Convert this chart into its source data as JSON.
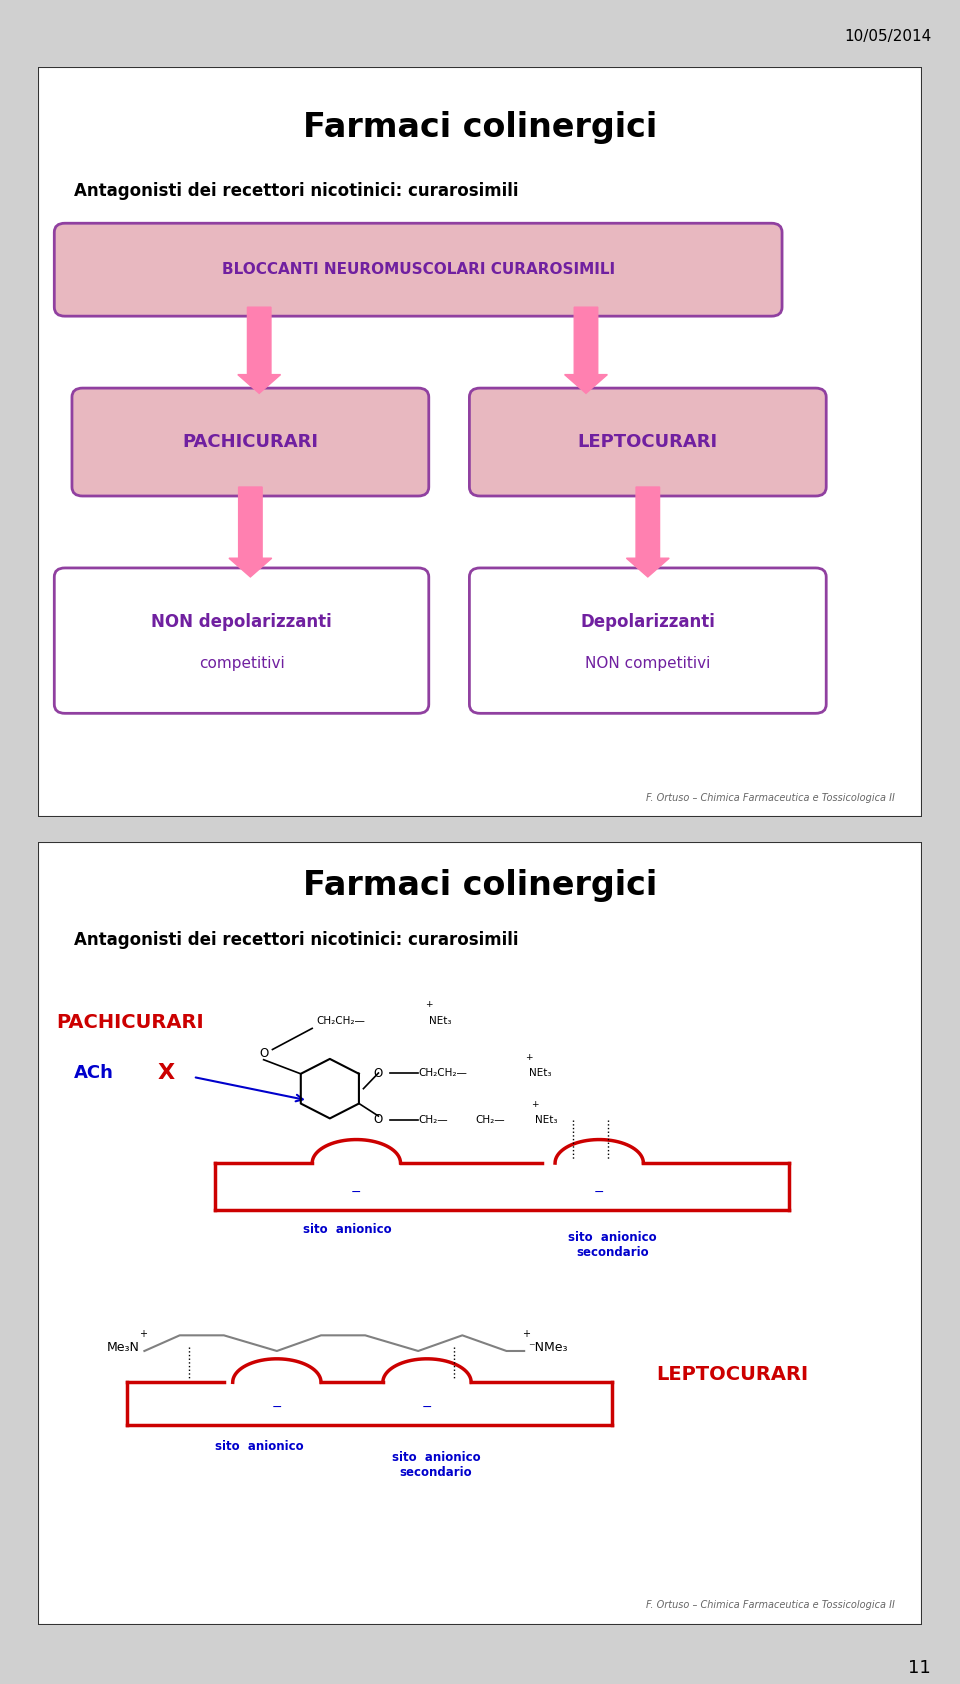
{
  "date_text": "10/05/2014",
  "page_number": "11",
  "slide1": {
    "title": "Farmaci colinergici",
    "subtitle": "Antagonisti dei recettori nicotinici: curarosimili",
    "box1_text": "BLOCCANTI NEUROMUSCOLARI CURAROSIMILI",
    "box2a_text": "PACHICURARI",
    "box2b_text": "LEPTOCURARI",
    "box3a_line1": "NON depolarizzanti",
    "box3a_line2": "competitivi",
    "box3b_line1": "Depolarizzanti",
    "box3b_line2": "NON competitivi",
    "footer": "F. Ortuso – Chimica Farmaceutica e Tossicologica II",
    "box_fill": "#e8b8c0",
    "box_border": "#9040a0",
    "box3_fill": "#ffffff",
    "box3_border": "#9040a0",
    "text_color": "#7020a0",
    "arrow_color": "#ff80b0",
    "title_color": "#000000",
    "subtitle_color": "#000000",
    "bg_color": "#ffffff",
    "slide_bg": "#ffffff",
    "slide_border": "#333333"
  },
  "slide2": {
    "title": "Farmaci colinergici",
    "subtitle": "Antagonisti dei recettori nicotinici: curarosimili",
    "label_pachicurari": "PACHICURARI",
    "label_ach": "ACh",
    "label_x": "X",
    "label_leptocurari": "LEPTOCURARI",
    "footer": "F. Ortuso – Chimica Farmaceutica e Tossicologica II",
    "pachicurari_color": "#cc0000",
    "ach_color": "#0000cc",
    "x_color": "#cc0000",
    "leptocurari_color": "#cc0000",
    "sito_anionico1": "sito  anionico",
    "sito_anionico2": "sito  anionico\nsecondario",
    "sito_anionico3": "sito  anionico",
    "sito_anionico4": "sito  anionico\nsecondario",
    "receptor_fill": "#ffffff",
    "receptor_border": "#cc0000",
    "slide_bg": "#ffffff",
    "slide_border": "#333333",
    "title_color": "#000000",
    "subtitle_color": "#000000",
    "bg_color": "#ffffff",
    "mol_color": "#000000",
    "sito_color": "#0000cc"
  }
}
